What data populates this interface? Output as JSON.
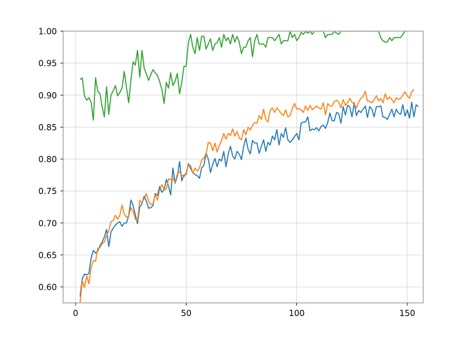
{
  "chart_data": {
    "type": "line",
    "title": "",
    "xlabel": "",
    "ylabel": "",
    "xlim": [
      -7.5,
      155.5
    ],
    "ylim": [
      0.5755,
      1.0
    ],
    "grid": true,
    "legend": null,
    "x_ticks": [
      0,
      50,
      100,
      150
    ],
    "x_tick_labels": [
      "0",
      "50",
      "100",
      "150"
    ],
    "y_ticks": [
      0.6,
      0.65,
      0.7,
      0.75,
      0.8,
      0.85,
      0.9,
      0.95,
      1.0
    ],
    "y_tick_labels": [
      "0.60",
      "0.65",
      "0.70",
      "0.75",
      "0.80",
      "0.85",
      "0.90",
      "0.95",
      "1.00"
    ],
    "x_start": 2,
    "x_step": 1,
    "series": [
      {
        "name": "series-blue",
        "color": "#1f77b4",
        "values": [
          0.585,
          0.613,
          0.62,
          0.619,
          0.621,
          0.645,
          0.657,
          0.653,
          0.656,
          0.665,
          0.67,
          0.678,
          0.69,
          0.663,
          0.686,
          0.692,
          0.697,
          0.7,
          0.702,
          0.695,
          0.7,
          0.7,
          0.712,
          0.736,
          0.727,
          0.713,
          0.699,
          0.725,
          0.73,
          0.742,
          0.734,
          0.723,
          0.724,
          0.727,
          0.746,
          0.743,
          0.757,
          0.748,
          0.752,
          0.768,
          0.758,
          0.744,
          0.786,
          0.762,
          0.773,
          0.796,
          0.766,
          0.775,
          0.776,
          0.793,
          0.785,
          0.779,
          0.776,
          0.774,
          0.77,
          0.786,
          0.79,
          0.809,
          0.8,
          0.779,
          0.792,
          0.801,
          0.788,
          0.8,
          0.797,
          0.812,
          0.788,
          0.808,
          0.82,
          0.805,
          0.8,
          0.812,
          0.808,
          0.799,
          0.82,
          0.833,
          0.815,
          0.808,
          0.829,
          0.825,
          0.825,
          0.809,
          0.82,
          0.83,
          0.812,
          0.826,
          0.822,
          0.836,
          0.83,
          0.846,
          0.822,
          0.84,
          0.834,
          0.849,
          0.83,
          0.826,
          0.83,
          0.835,
          0.84,
          0.83,
          0.856,
          0.858,
          0.858,
          0.866,
          0.844,
          0.847,
          0.846,
          0.849,
          0.844,
          0.851,
          0.853,
          0.848,
          0.857,
          0.872,
          0.86,
          0.86,
          0.873,
          0.871,
          0.856,
          0.882,
          0.869,
          0.884,
          0.882,
          0.866,
          0.888,
          0.868,
          0.876,
          0.873,
          0.878,
          0.883,
          0.865,
          0.882,
          0.878,
          0.866,
          0.882,
          0.882,
          0.883,
          0.866,
          0.865,
          0.862,
          0.87,
          0.878,
          0.866,
          0.878,
          0.872,
          0.87,
          0.885,
          0.867,
          0.877,
          0.864,
          0.889,
          0.866,
          0.885,
          0.882
        ]
      },
      {
        "name": "series-orange",
        "color": "#ff7f0e",
        "values": [
          0.575,
          0.61,
          0.599,
          0.617,
          0.605,
          0.63,
          0.641,
          0.64,
          0.66,
          0.662,
          0.668,
          0.67,
          0.68,
          0.688,
          0.702,
          0.704,
          0.712,
          0.706,
          0.712,
          0.728,
          0.714,
          0.709,
          0.711,
          0.724,
          0.718,
          0.706,
          0.704,
          0.735,
          0.732,
          0.738,
          0.746,
          0.734,
          0.729,
          0.73,
          0.744,
          0.736,
          0.752,
          0.76,
          0.752,
          0.753,
          0.769,
          0.768,
          0.77,
          0.763,
          0.777,
          0.78,
          0.775,
          0.772,
          0.779,
          0.79,
          0.79,
          0.778,
          0.786,
          0.781,
          0.786,
          0.798,
          0.802,
          0.808,
          0.826,
          0.825,
          0.813,
          0.825,
          0.811,
          0.821,
          0.829,
          0.84,
          0.831,
          0.84,
          0.837,
          0.847,
          0.836,
          0.843,
          0.833,
          0.83,
          0.846,
          0.838,
          0.85,
          0.845,
          0.853,
          0.857,
          0.856,
          0.868,
          0.862,
          0.878,
          0.862,
          0.858,
          0.876,
          0.88,
          0.873,
          0.88,
          0.876,
          0.871,
          0.868,
          0.877,
          0.866,
          0.868,
          0.879,
          0.887,
          0.878,
          0.879,
          0.877,
          0.873,
          0.883,
          0.876,
          0.884,
          0.877,
          0.88,
          0.883,
          0.88,
          0.878,
          0.888,
          0.869,
          0.887,
          0.883,
          0.883,
          0.89,
          0.892,
          0.889,
          0.88,
          0.893,
          0.884,
          0.888,
          0.895,
          0.889,
          0.886,
          0.88,
          0.889,
          0.895,
          0.898,
          0.906,
          0.891,
          0.89,
          0.888,
          0.893,
          0.899,
          0.891,
          0.895,
          0.888,
          0.902,
          0.893,
          0.897,
          0.893,
          0.888,
          0.896,
          0.893,
          0.895,
          0.9,
          0.905,
          0.899,
          0.895,
          0.905,
          0.909
        ]
      },
      {
        "name": "series-green",
        "color": "#2ca02c",
        "values": [
          0.924,
          0.927,
          0.899,
          0.892,
          0.896,
          0.889,
          0.861,
          0.927,
          0.906,
          0.902,
          0.882,
          0.866,
          0.913,
          0.87,
          0.9,
          0.907,
          0.915,
          0.899,
          0.904,
          0.911,
          0.937,
          0.912,
          0.888,
          0.924,
          0.952,
          0.947,
          0.97,
          0.928,
          0.97,
          0.942,
          0.933,
          0.923,
          0.932,
          0.94,
          0.935,
          0.931,
          0.921,
          0.909,
          0.887,
          0.92,
          0.911,
          0.935,
          0.915,
          0.922,
          0.934,
          0.902,
          0.92,
          0.945,
          0.945,
          0.982,
          0.995,
          0.975,
          0.965,
          0.99,
          0.97,
          0.992,
          0.992,
          0.972,
          0.98,
          0.988,
          0.97,
          0.98,
          0.982,
          0.99,
          0.975,
          0.995,
          0.985,
          0.99,
          0.98,
          0.995,
          0.983,
          0.992,
          0.983,
          0.965,
          0.975,
          0.975,
          0.985,
          0.99,
          0.96,
          0.985,
          0.995,
          0.98,
          0.98,
          0.98,
          0.975,
          0.99,
          0.99,
          0.99,
          0.985,
          0.99,
          0.995,
          0.98,
          0.985,
          0.985,
          0.985,
          1.0,
          0.99,
          0.995,
          0.985,
          0.99,
          0.998,
          0.995,
          1.0,
          0.997,
          1.0,
          0.995,
          1.0,
          1.0,
          1.0,
          1.0,
          1.0,
          0.99,
          0.995,
          0.995,
          0.995,
          1.0,
          0.997,
          0.995,
          1.0,
          1.0,
          1.0,
          1.0,
          1.0,
          1.0,
          1.0,
          1.0,
          1.0,
          1.0,
          1.0,
          1.0,
          1.0,
          1.0,
          1.0,
          1.0,
          1.0,
          1.0,
          0.99,
          0.985,
          0.983,
          0.983,
          0.99,
          0.985,
          0.99,
          0.99,
          0.99,
          0.99,
          0.995,
          1.0,
          1.0
        ]
      }
    ]
  },
  "colors": {
    "axis": "#b0b0b0",
    "grid": "#dddddd",
    "background": "#ffffff"
  }
}
